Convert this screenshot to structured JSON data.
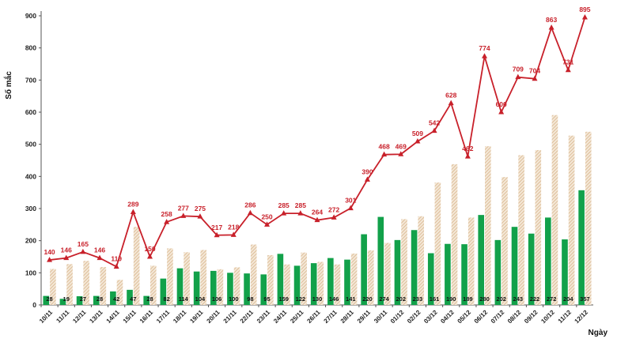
{
  "chart_data": {
    "type": "bar",
    "title": "",
    "ylabel": "Số mắc",
    "xlabel": "Ngày",
    "ylim": [
      0,
      900
    ],
    "yticks": [
      0,
      100,
      200,
      300,
      400,
      500,
      600,
      700,
      800,
      900
    ],
    "grid": false,
    "categories": [
      "10/11",
      "11/11",
      "12/11",
      "13/11",
      "14/11",
      "15/11",
      "16/11",
      "17/11",
      "18/11",
      "19/11",
      "20/11",
      "21/11",
      "22/11",
      "23/11",
      "24/11",
      "25/11",
      "26/11",
      "27/11",
      "28/11",
      "29/11",
      "30/11",
      "01/12",
      "02/12",
      "03/12",
      "04/12",
      "05/12",
      "06/12",
      "07/12",
      "08/12",
      "09/12",
      "10/12",
      "11/12",
      "12/12"
    ],
    "series": [
      {
        "name": "green",
        "kind": "bar",
        "color": "#12a14a",
        "values": [
          28,
          19,
          27,
          28,
          42,
          47,
          28,
          82,
          114,
          104,
          106,
          100,
          98,
          95,
          159,
          122,
          130,
          146,
          141,
          220,
          274,
          202,
          233,
          161,
          190,
          189,
          280,
          202,
          243,
          222,
          272,
          204,
          357
        ]
      },
      {
        "name": "hatched",
        "kind": "bar",
        "color": "#d8b48a",
        "values": [
          112,
          127,
          137,
          118,
          78,
          243,
          122,
          176,
          164,
          171,
          111,
          117,
          188,
          155,
          126,
          163,
          134,
          126,
          160,
          170,
          193,
          267,
          276,
          381,
          438,
          272,
          494,
          398,
          466,
          482,
          591,
          527,
          539
        ]
      },
      {
        "name": "red",
        "kind": "line",
        "color": "#c8202a",
        "values": [
          140,
          146,
          165,
          146,
          119,
          289,
          150,
          258,
          277,
          275,
          217,
          218,
          286,
          250,
          285,
          285,
          264,
          272,
          301,
          390,
          468,
          469,
          509,
          542,
          628,
          462,
          774,
          600,
          709,
          704,
          863,
          731,
          895
        ]
      }
    ]
  }
}
